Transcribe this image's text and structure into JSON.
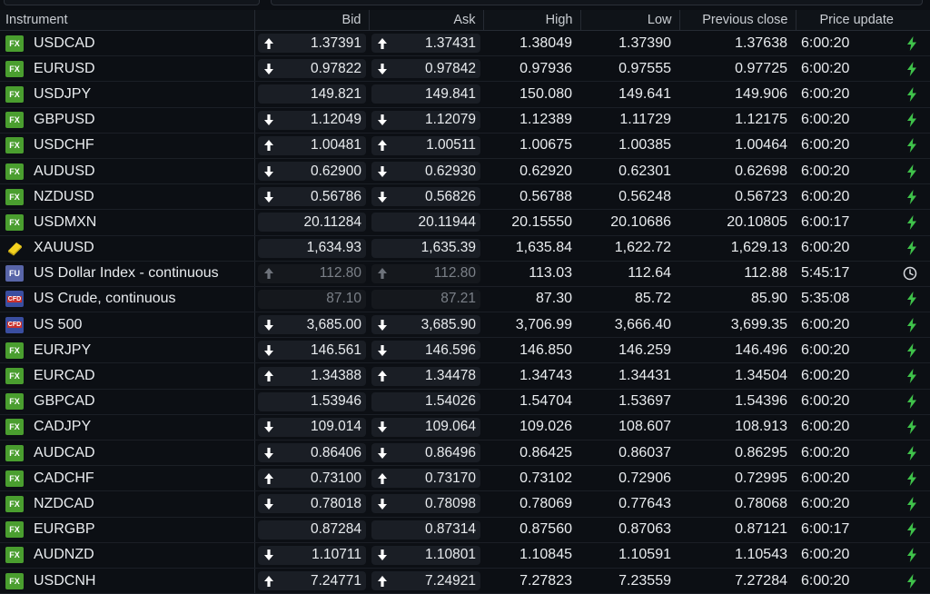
{
  "headers": {
    "instrument": "Instrument",
    "bid": "Bid",
    "ask": "Ask",
    "high": "High",
    "low": "Low",
    "previous_close": "Previous close",
    "price_update": "Price update"
  },
  "colors": {
    "up_down_arrow": "#ffffff",
    "bolt": "#3fc24a",
    "fx_badge": "#4a9e2f",
    "fu_badge": "#5865a8",
    "cfd_badge": "#3a4ea0"
  },
  "rows": [
    {
      "badge": "FX",
      "type": "fx",
      "name": "USDCAD",
      "dir": "up",
      "bid": "1.37391",
      "ask": "1.37431",
      "high": "1.38049",
      "low": "1.37390",
      "prev": "1.37638",
      "time": "6:00:20",
      "status": "bolt-icon"
    },
    {
      "badge": "FX",
      "type": "fx",
      "name": "EURUSD",
      "dir": "down",
      "bid": "0.97822",
      "ask": "0.97842",
      "high": "0.97936",
      "low": "0.97555",
      "prev": "0.97725",
      "time": "6:00:20",
      "status": "bolt-icon"
    },
    {
      "badge": "FX",
      "type": "fx",
      "name": "USDJPY",
      "dir": "none",
      "bid": "149.821",
      "ask": "149.841",
      "high": "150.080",
      "low": "149.641",
      "prev": "149.906",
      "time": "6:00:20",
      "status": "bolt-icon"
    },
    {
      "badge": "FX",
      "type": "fx",
      "name": "GBPUSD",
      "dir": "down",
      "bid": "1.12049",
      "ask": "1.12079",
      "high": "1.12389",
      "low": "1.11729",
      "prev": "1.12175",
      "time": "6:00:20",
      "status": "bolt-icon"
    },
    {
      "badge": "FX",
      "type": "fx",
      "name": "USDCHF",
      "dir": "up",
      "bid": "1.00481",
      "ask": "1.00511",
      "high": "1.00675",
      "low": "1.00385",
      "prev": "1.00464",
      "time": "6:00:20",
      "status": "bolt-icon"
    },
    {
      "badge": "FX",
      "type": "fx",
      "name": "AUDUSD",
      "dir": "down",
      "bid": "0.62900",
      "ask": "0.62930",
      "high": "0.62920",
      "low": "0.62301",
      "prev": "0.62698",
      "time": "6:00:20",
      "status": "bolt-icon"
    },
    {
      "badge": "FX",
      "type": "fx",
      "name": "NZDUSD",
      "dir": "down",
      "bid": "0.56786",
      "ask": "0.56826",
      "high": "0.56788",
      "low": "0.56248",
      "prev": "0.56723",
      "time": "6:00:20",
      "status": "bolt-icon"
    },
    {
      "badge": "FX",
      "type": "fx",
      "name": "USDMXN",
      "dir": "none",
      "bid": "20.11284",
      "ask": "20.11944",
      "high": "20.15550",
      "low": "20.10686",
      "prev": "20.10805",
      "time": "6:00:17",
      "status": "bolt-icon"
    },
    {
      "badge": "",
      "type": "gold",
      "name": "XAUUSD",
      "dir": "none",
      "bid": "1,634.93",
      "ask": "1,635.39",
      "high": "1,635.84",
      "low": "1,622.72",
      "prev": "1,629.13",
      "time": "6:00:20",
      "status": "bolt-icon"
    },
    {
      "badge": "FU",
      "type": "fu",
      "name": "US Dollar Index - continuous",
      "dir": "up",
      "stale": true,
      "bid": "112.80",
      "ask": "112.80",
      "high": "113.03",
      "low": "112.64",
      "prev": "112.88",
      "time": "5:45:17",
      "status": "clock-icon"
    },
    {
      "badge": "CFD",
      "type": "cfd",
      "name": "US Crude, continuous",
      "dir": "none",
      "stale": true,
      "bid": "87.10",
      "ask": "87.21",
      "high": "87.30",
      "low": "85.72",
      "prev": "85.90",
      "time": "5:35:08",
      "status": "bolt-icon"
    },
    {
      "badge": "CFD",
      "type": "cfd",
      "name": "US 500",
      "dir": "down",
      "bid": "3,685.00",
      "ask": "3,685.90",
      "high": "3,706.99",
      "low": "3,666.40",
      "prev": "3,699.35",
      "time": "6:00:20",
      "status": "bolt-icon"
    },
    {
      "badge": "FX",
      "type": "fx",
      "name": "EURJPY",
      "dir": "down",
      "bid": "146.561",
      "ask": "146.596",
      "high": "146.850",
      "low": "146.259",
      "prev": "146.496",
      "time": "6:00:20",
      "status": "bolt-icon"
    },
    {
      "badge": "FX",
      "type": "fx",
      "name": "EURCAD",
      "dir": "up",
      "bid": "1.34388",
      "ask": "1.34478",
      "high": "1.34743",
      "low": "1.34431",
      "prev": "1.34504",
      "time": "6:00:20",
      "status": "bolt-icon"
    },
    {
      "badge": "FX",
      "type": "fx",
      "name": "GBPCAD",
      "dir": "none",
      "bid": "1.53946",
      "ask": "1.54026",
      "high": "1.54704",
      "low": "1.53697",
      "prev": "1.54396",
      "time": "6:00:20",
      "status": "bolt-icon"
    },
    {
      "badge": "FX",
      "type": "fx",
      "name": "CADJPY",
      "dir": "down",
      "bid": "109.014",
      "ask": "109.064",
      "high": "109.026",
      "low": "108.607",
      "prev": "108.913",
      "time": "6:00:20",
      "status": "bolt-icon"
    },
    {
      "badge": "FX",
      "type": "fx",
      "name": "AUDCAD",
      "dir": "down",
      "bid": "0.86406",
      "ask": "0.86496",
      "high": "0.86425",
      "low": "0.86037",
      "prev": "0.86295",
      "time": "6:00:20",
      "status": "bolt-icon"
    },
    {
      "badge": "FX",
      "type": "fx",
      "name": "CADCHF",
      "dir": "up",
      "bid": "0.73100",
      "ask": "0.73170",
      "high": "0.73102",
      "low": "0.72906",
      "prev": "0.72995",
      "time": "6:00:20",
      "status": "bolt-icon"
    },
    {
      "badge": "FX",
      "type": "fx",
      "name": "NZDCAD",
      "dir": "down",
      "bid": "0.78018",
      "ask": "0.78098",
      "high": "0.78069",
      "low": "0.77643",
      "prev": "0.78068",
      "time": "6:00:20",
      "status": "bolt-icon"
    },
    {
      "badge": "FX",
      "type": "fx",
      "name": "EURGBP",
      "dir": "none",
      "bid": "0.87284",
      "ask": "0.87314",
      "high": "0.87560",
      "low": "0.87063",
      "prev": "0.87121",
      "time": "6:00:17",
      "status": "bolt-icon"
    },
    {
      "badge": "FX",
      "type": "fx",
      "name": "AUDNZD",
      "dir": "down",
      "bid": "1.10711",
      "ask": "1.10801",
      "high": "1.10845",
      "low": "1.10591",
      "prev": "1.10543",
      "time": "6:00:20",
      "status": "bolt-icon"
    },
    {
      "badge": "FX",
      "type": "fx",
      "name": "USDCNH",
      "dir": "up",
      "bid": "7.24771",
      "ask": "7.24921",
      "high": "7.27823",
      "low": "7.23559",
      "prev": "7.27284",
      "time": "6:00:20",
      "status": "bolt-icon"
    }
  ]
}
